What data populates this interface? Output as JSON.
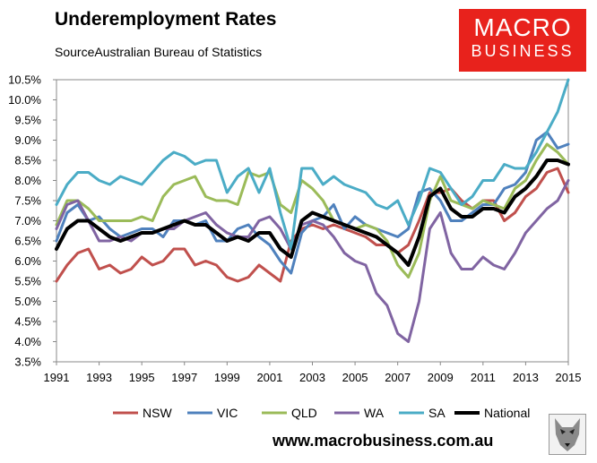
{
  "header": {
    "title": "Underemployment Rates",
    "subtitle": "SourceAustralian Bureau of Statistics"
  },
  "logo": {
    "line1": "MACRO",
    "line2": "BUSINESS"
  },
  "footer": {
    "url": "www.macrobusiness.com.au",
    "mascot_icon": "wolf-icon"
  },
  "chart_data": {
    "type": "line",
    "title": "Underemployment Rates",
    "xlabel": "",
    "ylabel": "",
    "xlim": [
      1991,
      2015
    ],
    "ylim": [
      3.5,
      10.5
    ],
    "yticks": [
      3.5,
      4.0,
      4.5,
      5.0,
      5.5,
      6.0,
      6.5,
      7.0,
      7.5,
      8.0,
      8.5,
      9.0,
      9.5,
      10.0,
      10.5
    ],
    "ytick_labels": [
      "3.5%",
      "4.0%",
      "4.5%",
      "5.0%",
      "5.5%",
      "6.0%",
      "6.5%",
      "7.0%",
      "7.5%",
      "8.0%",
      "8.5%",
      "9.0%",
      "9.5%",
      "10.0%",
      "10.5%"
    ],
    "xticks": [
      1991,
      1993,
      1995,
      1997,
      1999,
      2001,
      2003,
      2005,
      2007,
      2009,
      2011,
      2013,
      2015
    ],
    "xtick_labels": [
      "1991",
      "1993",
      "1995",
      "1997",
      "1999",
      "2001",
      "2003",
      "2005",
      "2007",
      "2009",
      "2011",
      "2013",
      "2015"
    ],
    "grid": false,
    "legend_position": "bottom",
    "series": [
      {
        "name": "NSW",
        "color": "#c0504d",
        "width": 3,
        "points": [
          [
            1991,
            5.5
          ],
          [
            1991.5,
            5.9
          ],
          [
            1992,
            6.2
          ],
          [
            1992.5,
            6.3
          ],
          [
            1993,
            5.8
          ],
          [
            1993.5,
            5.9
          ],
          [
            1994,
            5.7
          ],
          [
            1994.5,
            5.8
          ],
          [
            1995,
            6.1
          ],
          [
            1995.5,
            5.9
          ],
          [
            1996,
            6.0
          ],
          [
            1996.5,
            6.3
          ],
          [
            1997,
            6.3
          ],
          [
            1997.5,
            5.9
          ],
          [
            1998,
            6.0
          ],
          [
            1998.5,
            5.9
          ],
          [
            1999,
            5.6
          ],
          [
            1999.5,
            5.5
          ],
          [
            2000,
            5.6
          ],
          [
            2000.5,
            5.9
          ],
          [
            2001,
            5.7
          ],
          [
            2001.5,
            5.5
          ],
          [
            2002,
            6.5
          ],
          [
            2002.5,
            6.8
          ],
          [
            2003,
            6.9
          ],
          [
            2003.5,
            6.8
          ],
          [
            2004,
            6.9
          ],
          [
            2004.5,
            6.8
          ],
          [
            2005,
            6.7
          ],
          [
            2005.5,
            6.6
          ],
          [
            2006,
            6.4
          ],
          [
            2006.5,
            6.4
          ],
          [
            2007,
            6.2
          ],
          [
            2007.5,
            6.4
          ],
          [
            2008,
            7.0
          ],
          [
            2008.5,
            7.7
          ],
          [
            2009,
            7.7
          ],
          [
            2009.5,
            7.8
          ],
          [
            2010,
            7.5
          ],
          [
            2010.5,
            7.3
          ],
          [
            2011,
            7.5
          ],
          [
            2011.5,
            7.5
          ],
          [
            2012,
            7.0
          ],
          [
            2012.5,
            7.2
          ],
          [
            2013,
            7.6
          ],
          [
            2013.5,
            7.8
          ],
          [
            2014,
            8.2
          ],
          [
            2014.5,
            8.3
          ],
          [
            2015,
            7.7
          ]
        ]
      },
      {
        "name": "VIC",
        "color": "#4f81bd",
        "width": 3,
        "points": [
          [
            1991,
            6.5
          ],
          [
            1991.5,
            7.2
          ],
          [
            1992,
            7.4
          ],
          [
            1992.5,
            7.0
          ],
          [
            1993,
            7.1
          ],
          [
            1993.5,
            6.8
          ],
          [
            1994,
            6.6
          ],
          [
            1994.5,
            6.7
          ],
          [
            1995,
            6.8
          ],
          [
            1995.5,
            6.8
          ],
          [
            1996,
            6.6
          ],
          [
            1996.5,
            7.0
          ],
          [
            1997,
            7.0
          ],
          [
            1997.5,
            6.9
          ],
          [
            1998,
            7.0
          ],
          [
            1998.5,
            6.5
          ],
          [
            1999,
            6.5
          ],
          [
            1999.5,
            6.8
          ],
          [
            2000,
            6.9
          ],
          [
            2000.5,
            6.6
          ],
          [
            2001,
            6.4
          ],
          [
            2001.5,
            6.0
          ],
          [
            2002,
            5.7
          ],
          [
            2002.5,
            6.7
          ],
          [
            2003,
            7.0
          ],
          [
            2003.5,
            7.1
          ],
          [
            2004,
            7.4
          ],
          [
            2004.5,
            6.8
          ],
          [
            2005,
            7.1
          ],
          [
            2005.5,
            6.9
          ],
          [
            2006,
            6.8
          ],
          [
            2006.5,
            6.7
          ],
          [
            2007,
            6.6
          ],
          [
            2007.5,
            6.8
          ],
          [
            2008,
            7.7
          ],
          [
            2008.5,
            7.8
          ],
          [
            2009,
            7.5
          ],
          [
            2009.5,
            7.0
          ],
          [
            2010,
            7.0
          ],
          [
            2010.5,
            7.2
          ],
          [
            2011,
            7.4
          ],
          [
            2011.5,
            7.4
          ],
          [
            2012,
            7.8
          ],
          [
            2012.5,
            7.9
          ],
          [
            2013,
            8.2
          ],
          [
            2013.5,
            9.0
          ],
          [
            2014,
            9.2
          ],
          [
            2014.5,
            8.8
          ],
          [
            2015,
            8.9
          ]
        ]
      },
      {
        "name": "QLD",
        "color": "#9bbb59",
        "width": 3,
        "points": [
          [
            1991,
            6.9
          ],
          [
            1991.5,
            7.5
          ],
          [
            1992,
            7.5
          ],
          [
            1992.5,
            7.3
          ],
          [
            1993,
            7.0
          ],
          [
            1993.5,
            7.0
          ],
          [
            1994,
            7.0
          ],
          [
            1994.5,
            7.0
          ],
          [
            1995,
            7.1
          ],
          [
            1995.5,
            7.0
          ],
          [
            1996,
            7.6
          ],
          [
            1996.5,
            7.9
          ],
          [
            1997,
            8.0
          ],
          [
            1997.5,
            8.1
          ],
          [
            1998,
            7.6
          ],
          [
            1998.5,
            7.5
          ],
          [
            1999,
            7.5
          ],
          [
            1999.5,
            7.4
          ],
          [
            2000,
            8.2
          ],
          [
            2000.5,
            8.1
          ],
          [
            2001,
            8.2
          ],
          [
            2001.5,
            7.4
          ],
          [
            2002,
            7.2
          ],
          [
            2002.5,
            8.0
          ],
          [
            2003,
            7.8
          ],
          [
            2003.5,
            7.5
          ],
          [
            2004,
            7.0
          ],
          [
            2004.5,
            6.9
          ],
          [
            2005,
            6.8
          ],
          [
            2005.5,
            6.9
          ],
          [
            2006,
            6.8
          ],
          [
            2006.5,
            6.5
          ],
          [
            2007,
            5.9
          ],
          [
            2007.5,
            5.6
          ],
          [
            2008,
            6.2
          ],
          [
            2008.5,
            7.5
          ],
          [
            2009,
            8.1
          ],
          [
            2009.5,
            7.5
          ],
          [
            2010,
            7.4
          ],
          [
            2010.5,
            7.3
          ],
          [
            2011,
            7.5
          ],
          [
            2011.5,
            7.4
          ],
          [
            2012,
            7.3
          ],
          [
            2012.5,
            7.8
          ],
          [
            2013,
            8.0
          ],
          [
            2013.5,
            8.5
          ],
          [
            2014,
            8.9
          ],
          [
            2014.5,
            8.7
          ],
          [
            2015,
            8.4
          ]
        ]
      },
      {
        "name": "WA",
        "color": "#8064a2",
        "width": 3,
        "points": [
          [
            1991,
            6.8
          ],
          [
            1991.5,
            7.4
          ],
          [
            1992,
            7.5
          ],
          [
            1992.5,
            7.0
          ],
          [
            1993,
            6.5
          ],
          [
            1993.5,
            6.5
          ],
          [
            1994,
            6.6
          ],
          [
            1994.5,
            6.5
          ],
          [
            1995,
            6.7
          ],
          [
            1995.5,
            6.7
          ],
          [
            1996,
            6.8
          ],
          [
            1996.5,
            6.8
          ],
          [
            1997,
            7.0
          ],
          [
            1997.5,
            7.1
          ],
          [
            1998,
            7.2
          ],
          [
            1998.5,
            6.9
          ],
          [
            1999,
            6.7
          ],
          [
            1999.5,
            6.6
          ],
          [
            2000,
            6.6
          ],
          [
            2000.5,
            7.0
          ],
          [
            2001,
            7.1
          ],
          [
            2001.5,
            6.8
          ],
          [
            2002,
            6.3
          ],
          [
            2002.5,
            6.9
          ],
          [
            2003,
            7.0
          ],
          [
            2003.5,
            6.9
          ],
          [
            2004,
            6.6
          ],
          [
            2004.5,
            6.2
          ],
          [
            2005,
            6.0
          ],
          [
            2005.5,
            5.9
          ],
          [
            2006,
            5.2
          ],
          [
            2006.5,
            4.9
          ],
          [
            2007,
            4.2
          ],
          [
            2007.5,
            4.0
          ],
          [
            2008,
            5.0
          ],
          [
            2008.5,
            6.8
          ],
          [
            2009,
            7.2
          ],
          [
            2009.5,
            6.2
          ],
          [
            2010,
            5.8
          ],
          [
            2010.5,
            5.8
          ],
          [
            2011,
            6.1
          ],
          [
            2011.5,
            5.9
          ],
          [
            2012,
            5.8
          ],
          [
            2012.5,
            6.2
          ],
          [
            2013,
            6.7
          ],
          [
            2013.5,
            7.0
          ],
          [
            2014,
            7.3
          ],
          [
            2014.5,
            7.5
          ],
          [
            2015,
            8.0
          ]
        ]
      },
      {
        "name": "SA",
        "color": "#4bacc6",
        "width": 3,
        "points": [
          [
            1991,
            7.4
          ],
          [
            1991.5,
            7.9
          ],
          [
            1992,
            8.2
          ],
          [
            1992.5,
            8.2
          ],
          [
            1993,
            8.0
          ],
          [
            1993.5,
            7.9
          ],
          [
            1994,
            8.1
          ],
          [
            1994.5,
            8.0
          ],
          [
            1995,
            7.9
          ],
          [
            1995.5,
            8.2
          ],
          [
            1996,
            8.5
          ],
          [
            1996.5,
            8.7
          ],
          [
            1997,
            8.6
          ],
          [
            1997.5,
            8.4
          ],
          [
            1998,
            8.5
          ],
          [
            1998.5,
            8.5
          ],
          [
            1999,
            7.7
          ],
          [
            1999.5,
            8.1
          ],
          [
            2000,
            8.3
          ],
          [
            2000.5,
            7.7
          ],
          [
            2001,
            8.3
          ],
          [
            2001.5,
            7.2
          ],
          [
            2002,
            6.3
          ],
          [
            2002.5,
            8.3
          ],
          [
            2003,
            8.3
          ],
          [
            2003.5,
            7.9
          ],
          [
            2004,
            8.1
          ],
          [
            2004.5,
            7.9
          ],
          [
            2005,
            7.8
          ],
          [
            2005.5,
            7.7
          ],
          [
            2006,
            7.4
          ],
          [
            2006.5,
            7.3
          ],
          [
            2007,
            7.5
          ],
          [
            2007.5,
            6.9
          ],
          [
            2008,
            7.5
          ],
          [
            2008.5,
            8.3
          ],
          [
            2009,
            8.2
          ],
          [
            2009.5,
            7.8
          ],
          [
            2010,
            7.4
          ],
          [
            2010.5,
            7.6
          ],
          [
            2011,
            8.0
          ],
          [
            2011.5,
            8.0
          ],
          [
            2012,
            8.4
          ],
          [
            2012.5,
            8.3
          ],
          [
            2013,
            8.3
          ],
          [
            2013.5,
            8.7
          ],
          [
            2014,
            9.2
          ],
          [
            2014.5,
            9.7
          ],
          [
            2015,
            10.5
          ]
        ]
      },
      {
        "name": "National",
        "color": "#000000",
        "width": 4,
        "points": [
          [
            1991,
            6.3
          ],
          [
            1991.5,
            6.8
          ],
          [
            1992,
            7.0
          ],
          [
            1992.5,
            7.0
          ],
          [
            1993,
            6.8
          ],
          [
            1993.5,
            6.6
          ],
          [
            1994,
            6.5
          ],
          [
            1994.5,
            6.6
          ],
          [
            1995,
            6.7
          ],
          [
            1995.5,
            6.7
          ],
          [
            1996,
            6.8
          ],
          [
            1996.5,
            6.9
          ],
          [
            1997,
            7.0
          ],
          [
            1997.5,
            6.9
          ],
          [
            1998,
            6.9
          ],
          [
            1998.5,
            6.7
          ],
          [
            1999,
            6.5
          ],
          [
            1999.5,
            6.6
          ],
          [
            2000,
            6.5
          ],
          [
            2000.5,
            6.7
          ],
          [
            2001,
            6.7
          ],
          [
            2001.5,
            6.3
          ],
          [
            2002,
            6.1
          ],
          [
            2002.5,
            7.0
          ],
          [
            2003,
            7.2
          ],
          [
            2003.5,
            7.1
          ],
          [
            2004,
            7.0
          ],
          [
            2004.5,
            6.9
          ],
          [
            2005,
            6.8
          ],
          [
            2005.5,
            6.7
          ],
          [
            2006,
            6.6
          ],
          [
            2006.5,
            6.4
          ],
          [
            2007,
            6.2
          ],
          [
            2007.5,
            5.9
          ],
          [
            2008,
            6.6
          ],
          [
            2008.5,
            7.6
          ],
          [
            2009,
            7.8
          ],
          [
            2009.5,
            7.3
          ],
          [
            2010,
            7.1
          ],
          [
            2010.5,
            7.1
          ],
          [
            2011,
            7.3
          ],
          [
            2011.5,
            7.3
          ],
          [
            2012,
            7.2
          ],
          [
            2012.5,
            7.6
          ],
          [
            2013,
            7.8
          ],
          [
            2013.5,
            8.1
          ],
          [
            2014,
            8.5
          ],
          [
            2014.5,
            8.5
          ],
          [
            2015,
            8.4
          ]
        ]
      }
    ]
  }
}
